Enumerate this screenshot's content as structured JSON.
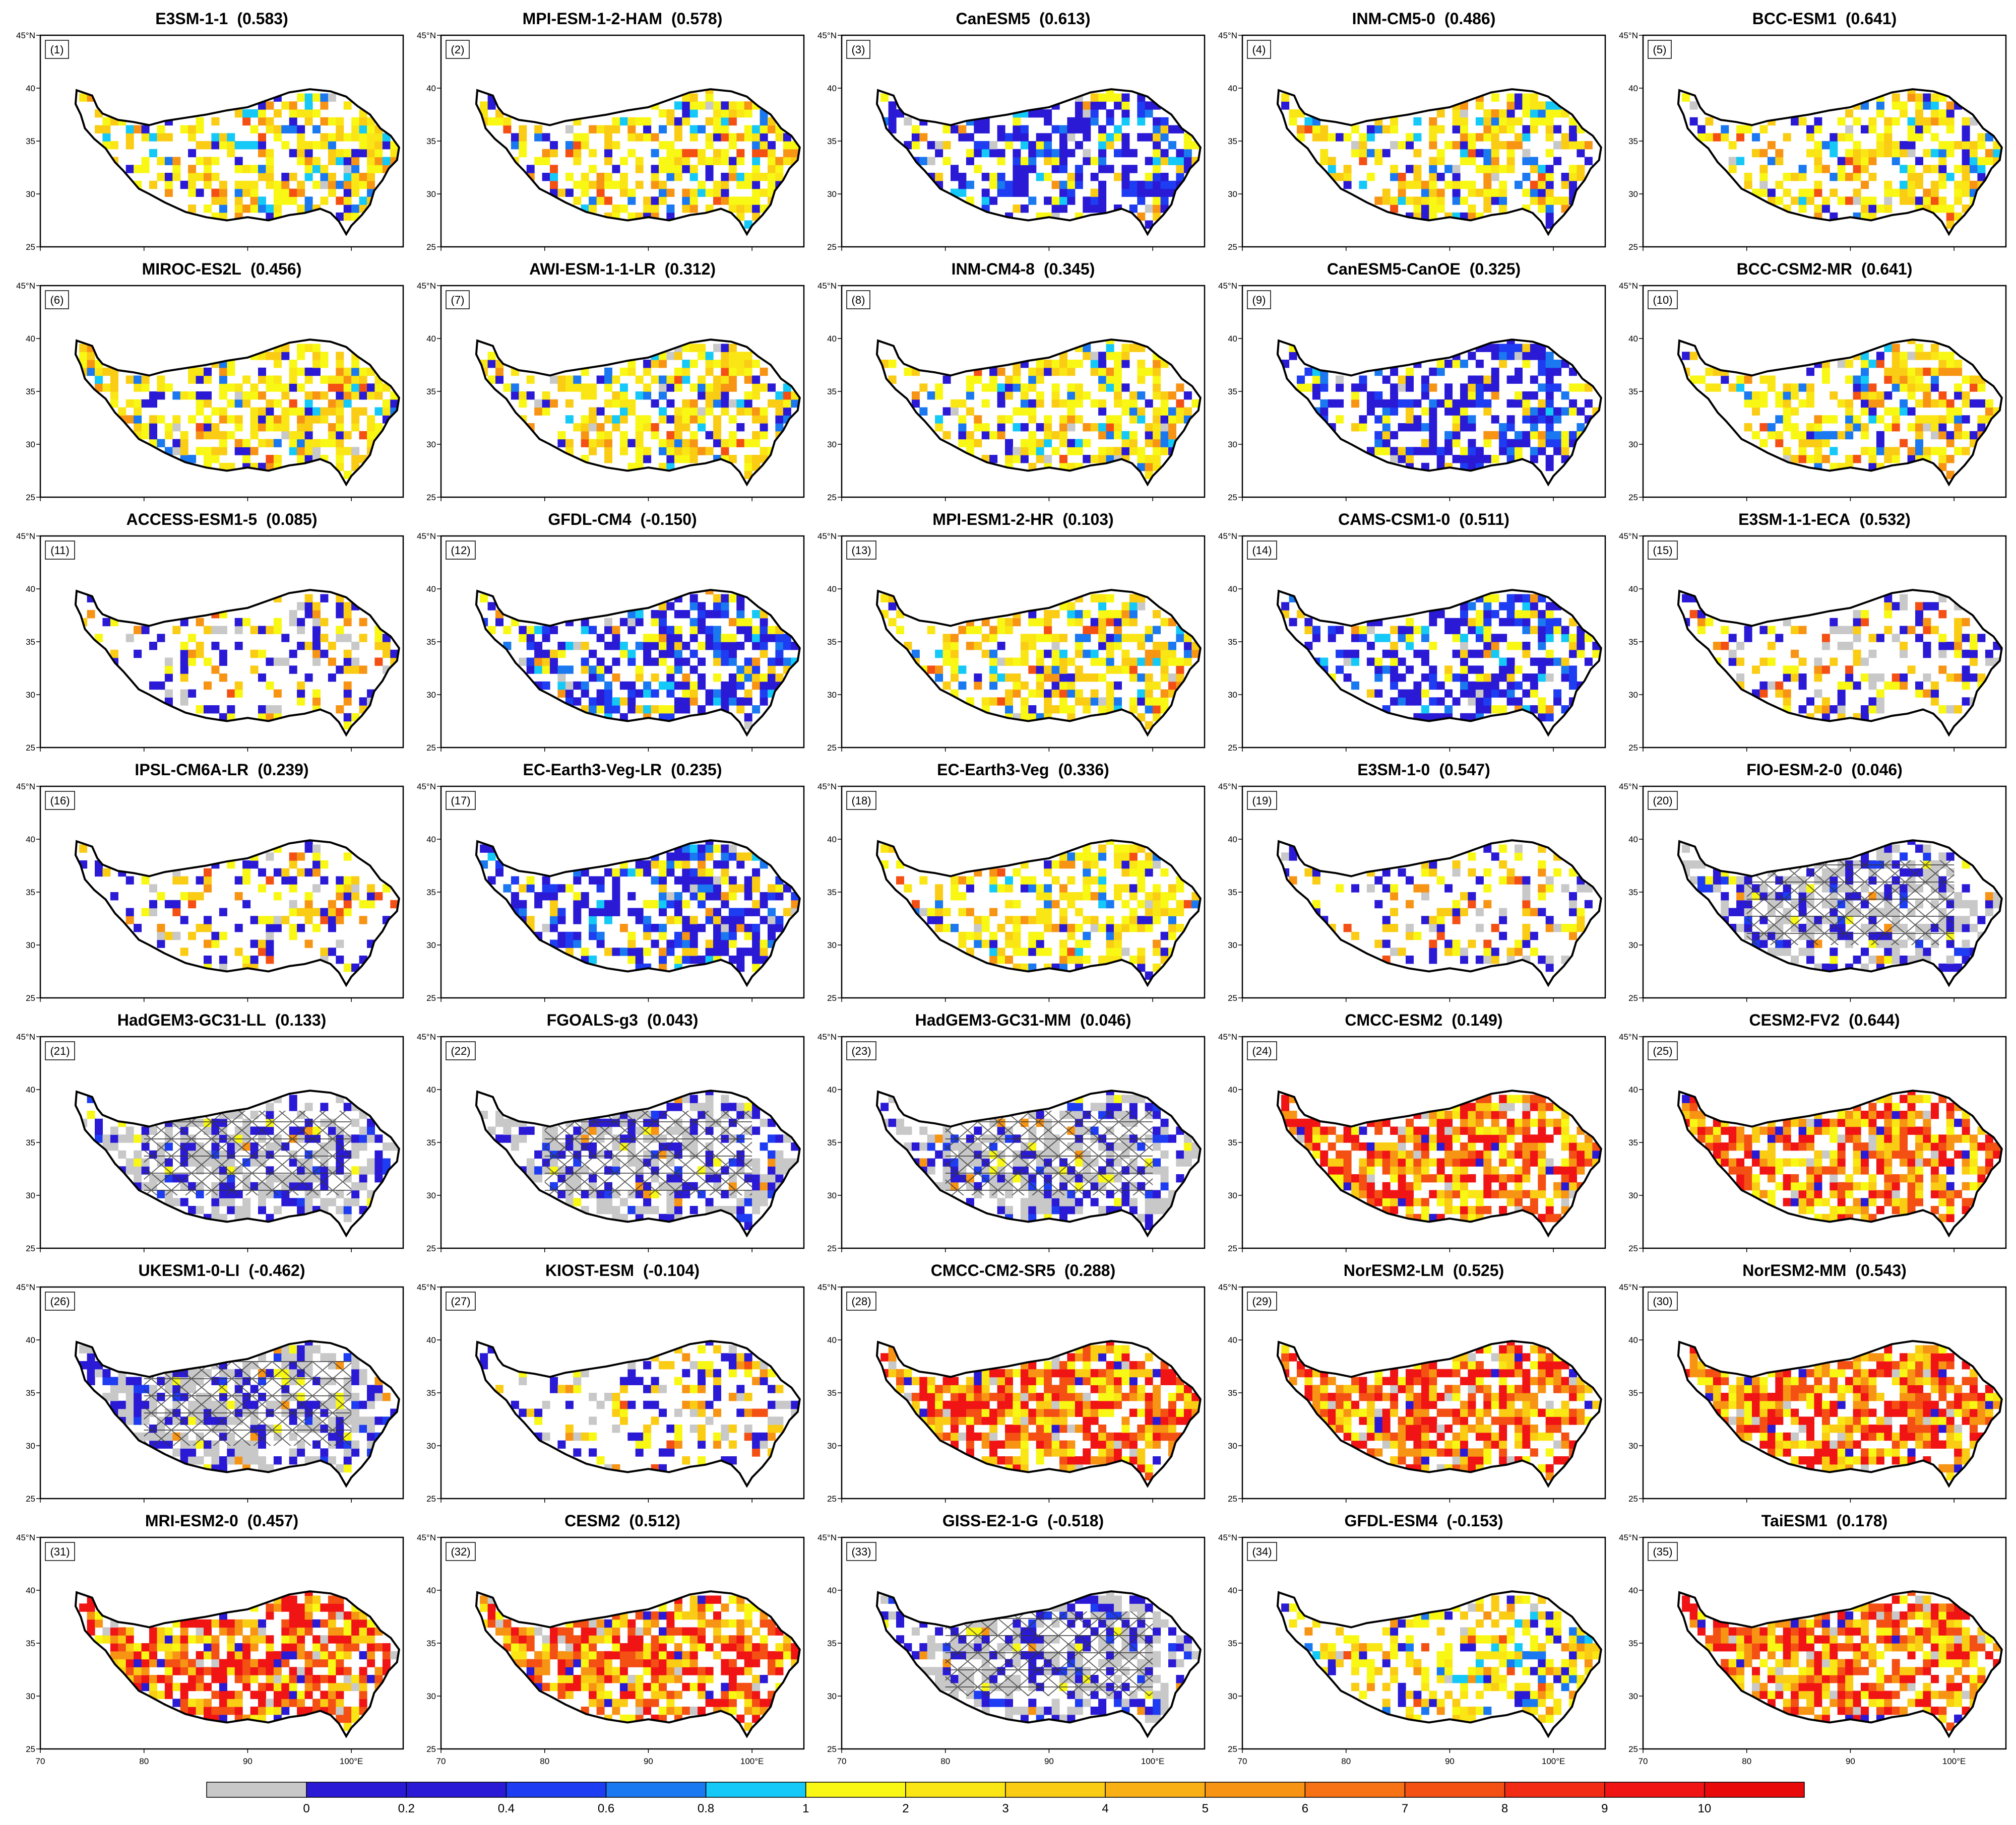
{
  "chart_data": {
    "type": "heatmap",
    "layout": "7 rows x 5 columns of map panels over the Tibetan Plateau",
    "x_range": [
      70,
      105
    ],
    "y_range": [
      25,
      45
    ],
    "x_ticks": [
      "70",
      "80",
      "90",
      "100°E"
    ],
    "y_ticks": [
      "45°N",
      "40",
      "35",
      "30",
      "25"
    ],
    "y_tick_values": [
      45,
      40,
      35,
      30,
      25
    ],
    "x_tick_values": [
      70,
      80,
      90,
      100
    ],
    "colorbar": {
      "labels": [
        "0",
        "0.2",
        "0.4",
        "0.6",
        "0.8",
        "1",
        "2",
        "3",
        "4",
        "5",
        "6",
        "7",
        "8",
        "9",
        "10"
      ],
      "colors": [
        "#c8c8c8",
        "#2a1ad6",
        "#2a1ad6",
        "#1e3cf2",
        "#1a78f0",
        "#14c8f8",
        "#f8f814",
        "#fae614",
        "#facc14",
        "#f8b014",
        "#f89414",
        "#f67214",
        "#f45014",
        "#f22c14",
        "#f01414",
        "#e80a0a"
      ]
    },
    "panels": [
      {
        "id": "(1)",
        "model": "E3SM-1-1",
        "score": "(0.583)",
        "pattern": "yellow"
      },
      {
        "id": "(2)",
        "model": "MPI-ESM-1-2-HAM",
        "score": "(0.578)",
        "pattern": "yellow"
      },
      {
        "id": "(3)",
        "model": "CanESM5",
        "score": "(0.613)",
        "pattern": "blue"
      },
      {
        "id": "(4)",
        "model": "INM-CM5-0",
        "score": "(0.486)",
        "pattern": "yellow"
      },
      {
        "id": "(5)",
        "model": "BCC-ESM1",
        "score": "(0.641)",
        "pattern": "yellow"
      },
      {
        "id": "(6)",
        "model": "MIROC-ES2L",
        "score": "(0.456)",
        "pattern": "yellow"
      },
      {
        "id": "(7)",
        "model": "AWI-ESM-1-1-LR",
        "score": "(0.312)",
        "pattern": "yellow"
      },
      {
        "id": "(8)",
        "model": "INM-CM4-8",
        "score": "(0.345)",
        "pattern": "yellow"
      },
      {
        "id": "(9)",
        "model": "CanESM5-CanOE",
        "score": "(0.325)",
        "pattern": "blue"
      },
      {
        "id": "(10)",
        "model": "BCC-CSM2-MR",
        "score": "(0.641)",
        "pattern": "yellow"
      },
      {
        "id": "(11)",
        "model": "ACCESS-ESM1-5",
        "score": "(0.085)",
        "pattern": "sparse"
      },
      {
        "id": "(12)",
        "model": "GFDL-CM4",
        "score": "(-0.150)",
        "pattern": "blue"
      },
      {
        "id": "(13)",
        "model": "MPI-ESM1-2-HR",
        "score": "(0.103)",
        "pattern": "yellow"
      },
      {
        "id": "(14)",
        "model": "CAMS-CSM1-0",
        "score": "(0.511)",
        "pattern": "blue"
      },
      {
        "id": "(15)",
        "model": "E3SM-1-1-ECA",
        "score": "(0.532)",
        "pattern": "sparse"
      },
      {
        "id": "(16)",
        "model": "IPSL-CM6A-LR",
        "score": "(0.239)",
        "pattern": "sparse"
      },
      {
        "id": "(17)",
        "model": "EC-Earth3-Veg-LR",
        "score": "(0.235)",
        "pattern": "blue"
      },
      {
        "id": "(18)",
        "model": "EC-Earth3-Veg",
        "score": "(0.336)",
        "pattern": "yellow"
      },
      {
        "id": "(19)",
        "model": "E3SM-1-0",
        "score": "(0.547)",
        "pattern": "sparse"
      },
      {
        "id": "(20)",
        "model": "FIO-ESM-2-0",
        "score": "(0.046)",
        "pattern": "grey"
      },
      {
        "id": "(21)",
        "model": "HadGEM3-GC31-LL",
        "score": "(0.133)",
        "pattern": "grey"
      },
      {
        "id": "(22)",
        "model": "FGOALS-g3",
        "score": "(0.043)",
        "pattern": "grey"
      },
      {
        "id": "(23)",
        "model": "HadGEM3-GC31-MM",
        "score": "(0.046)",
        "pattern": "grey"
      },
      {
        "id": "(24)",
        "model": "CMCC-ESM2",
        "score": "(0.149)",
        "pattern": "red"
      },
      {
        "id": "(25)",
        "model": "CESM2-FV2",
        "score": "(0.644)",
        "pattern": "red"
      },
      {
        "id": "(26)",
        "model": "UKESM1-0-LI",
        "score": "(-0.462)",
        "pattern": "grey"
      },
      {
        "id": "(27)",
        "model": "KIOST-ESM",
        "score": "(-0.104)",
        "pattern": "sparse"
      },
      {
        "id": "(28)",
        "model": "CMCC-CM2-SR5",
        "score": "(0.288)",
        "pattern": "red"
      },
      {
        "id": "(29)",
        "model": "NorESM2-LM",
        "score": "(0.525)",
        "pattern": "red"
      },
      {
        "id": "(30)",
        "model": "NorESM2-MM",
        "score": "(0.543)",
        "pattern": "red"
      },
      {
        "id": "(31)",
        "model": "MRI-ESM2-0",
        "score": "(0.457)",
        "pattern": "red"
      },
      {
        "id": "(32)",
        "model": "CESM2",
        "score": "(0.512)",
        "pattern": "red"
      },
      {
        "id": "(33)",
        "model": "GISS-E2-1-G",
        "score": "(-0.518)",
        "pattern": "grey"
      },
      {
        "id": "(34)",
        "model": "GFDL-ESM4",
        "score": "(-0.153)",
        "pattern": "yellow"
      },
      {
        "id": "(35)",
        "model": "TaiESM1",
        "score": "(0.178)",
        "pattern": "red"
      }
    ]
  }
}
